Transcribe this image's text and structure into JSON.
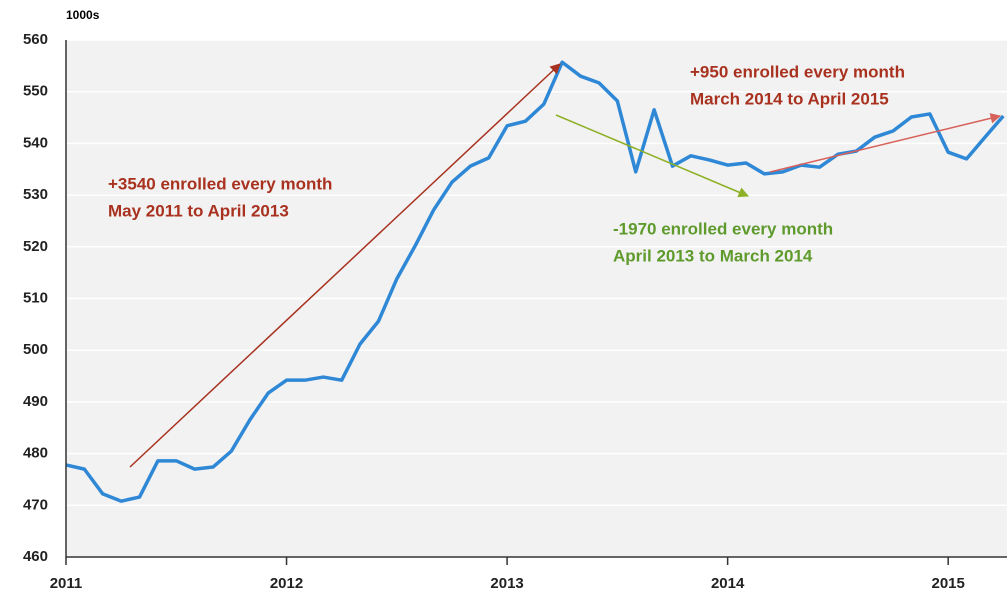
{
  "chart_data": {
    "type": "line",
    "unit_label": "1000s",
    "x": [
      2011,
      2011.0833,
      2011.1667,
      2011.25,
      2011.3333,
      2011.4167,
      2011.5,
      2011.5833,
      2011.6667,
      2011.75,
      2011.8333,
      2011.9167,
      2012,
      2012.0833,
      2012.1667,
      2012.25,
      2012.3333,
      2012.4167,
      2012.5,
      2012.5833,
      2012.6667,
      2012.75,
      2012.8333,
      2012.9167,
      2013,
      2013.0833,
      2013.1667,
      2013.25,
      2013.3333,
      2013.4167,
      2013.5,
      2013.5833,
      2013.6667,
      2013.75,
      2013.8333,
      2013.9167,
      2014,
      2014.0833,
      2014.1667,
      2014.25,
      2014.3333,
      2014.4167,
      2014.5,
      2014.5833,
      2014.6667,
      2014.75,
      2014.8333,
      2014.9167,
      2015,
      2015.0833,
      2015.1667,
      2015.25
    ],
    "series": [
      {
        "color": "#2f88d6",
        "values": [
          477.8,
          477.0,
          472.2,
          470.8,
          471.6,
          478.6,
          478.6,
          477.0,
          477.4,
          480.5,
          486.5,
          491.7,
          494.2,
          494.2,
          494.8,
          494.2,
          501.2,
          505.6,
          513.8,
          520.2,
          527.1,
          532.5,
          535.6,
          537.2,
          543.4,
          544.3,
          547.6,
          555.7,
          553.0,
          551.7,
          548.2,
          534.5,
          546.5,
          535.6,
          537.6,
          536.8,
          535.8,
          536.2,
          534.1,
          534.5,
          535.8,
          535.4,
          537.9,
          538.5,
          541.2,
          542.4,
          545.1,
          545.7,
          538.3,
          537.0,
          541.2,
          545.3
        ]
      }
    ],
    "xlim": [
      2011,
      2015.2667
    ],
    "xticks": [
      2011,
      2012,
      2013,
      2014,
      2015
    ],
    "ylim": [
      460,
      560
    ],
    "yticks": [
      460,
      470,
      480,
      490,
      500,
      510,
      520,
      530,
      540,
      550,
      560
    ],
    "grid": true,
    "annotations": [
      {
        "lines": [
          "+3540 enrolled every month",
          "May 2011 to April 2013"
        ],
        "color": "#a8321f"
      },
      {
        "lines": [
          "-1970 enrolled every month",
          "April 2013 to March 2014"
        ],
        "color": "#5f9a2c"
      },
      {
        "lines": [
          "+950 enrolled every month",
          "March 2014 to April 2015"
        ],
        "color": "#a8321f"
      }
    ]
  }
}
